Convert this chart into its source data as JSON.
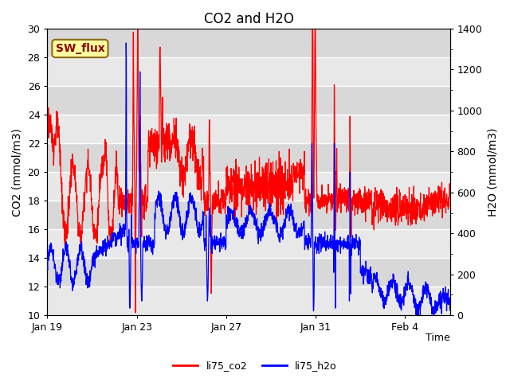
{
  "title": "CO2 and H2O",
  "xlabel": "Time",
  "ylabel_left": "CO2 (mmol/m3)",
  "ylabel_right": "H2O (mmol/m3)",
  "ylim_left": [
    10,
    30
  ],
  "ylim_right": [
    0,
    1400
  ],
  "yticks_left": [
    10,
    12,
    14,
    16,
    18,
    20,
    22,
    24,
    26,
    28,
    30
  ],
  "yticks_right": [
    0,
    200,
    400,
    600,
    800,
    1000,
    1200,
    1400
  ],
  "xtick_positions": [
    0,
    4,
    8,
    12,
    16
  ],
  "xtick_labels": [
    "Jan 19",
    "Jan 23",
    "Jan 27",
    "Jan 31",
    "Feb 4"
  ],
  "xlim": [
    0,
    18
  ],
  "annotation_text": "SW_flux",
  "annotation_color": "#8B0000",
  "annotation_bg": "#FFFFA0",
  "annotation_border": "#8B6914",
  "co2_color": "red",
  "h2o_color": "blue",
  "plot_bg_color": "#D8D8D8",
  "band_color": "#E8E8E8",
  "legend_labels": [
    "li75_co2",
    "li75_h2o"
  ],
  "title_fontsize": 12,
  "axis_label_fontsize": 10,
  "tick_label_fontsize": 9,
  "line_width": 0.9
}
